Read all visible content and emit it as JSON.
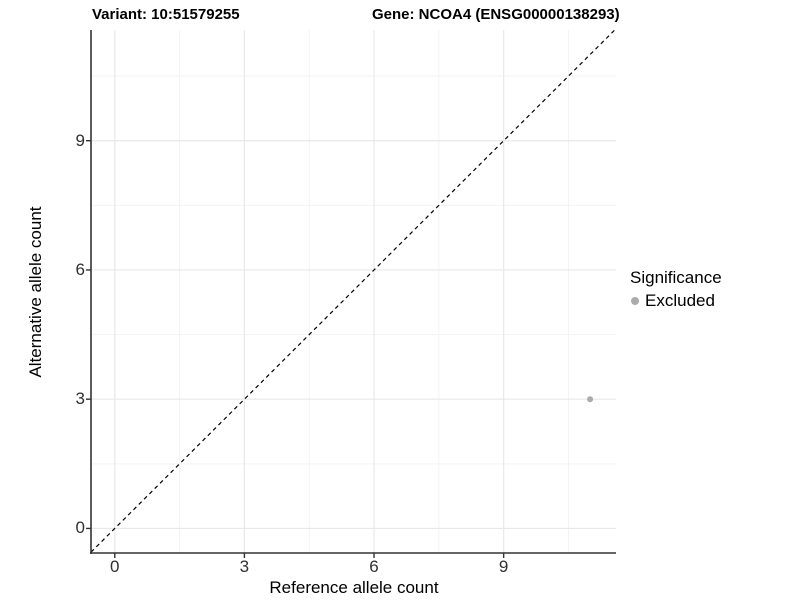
{
  "header": {
    "title_left": "Variant: 10:51579255",
    "title_right": "Gene: NCOA4 (ENSG00000138293)"
  },
  "legend": {
    "title": "Significance",
    "position": "right",
    "items": [
      {
        "label": "Excluded",
        "color": "#ababab",
        "marker": "circle"
      }
    ]
  },
  "chart_data": {
    "type": "scatter",
    "title": "Variant: 10:51579255   Gene: NCOA4 (ENSG00000138293)",
    "xlabel": "Reference allele count",
    "ylabel": "Alternative allele count",
    "xlim": [
      -0.55,
      11.6
    ],
    "ylim": [
      -0.57,
      11.57
    ],
    "x_ticks": [
      0,
      3,
      6,
      9
    ],
    "y_ticks": [
      0,
      3,
      6,
      9
    ],
    "x_minor_ticks": [
      1.5,
      4.5,
      7.5,
      10.5
    ],
    "y_minor_ticks": [
      1.5,
      4.5,
      7.5,
      10.5
    ],
    "grid": true,
    "legend_position": "right",
    "identity_line": {
      "type": "y=x",
      "style": "dashed",
      "color": "#000000"
    },
    "series": [
      {
        "name": "Excluded",
        "color": "#ababab",
        "marker": "circle",
        "points": [
          {
            "x": 11,
            "y": 3
          }
        ]
      }
    ],
    "style": {
      "grid_major": "#e8e8e8",
      "grid_minor": "#f3f3f3",
      "axis_line": "#333333",
      "tick_mark": "#333333",
      "background": "#ffffff"
    }
  }
}
